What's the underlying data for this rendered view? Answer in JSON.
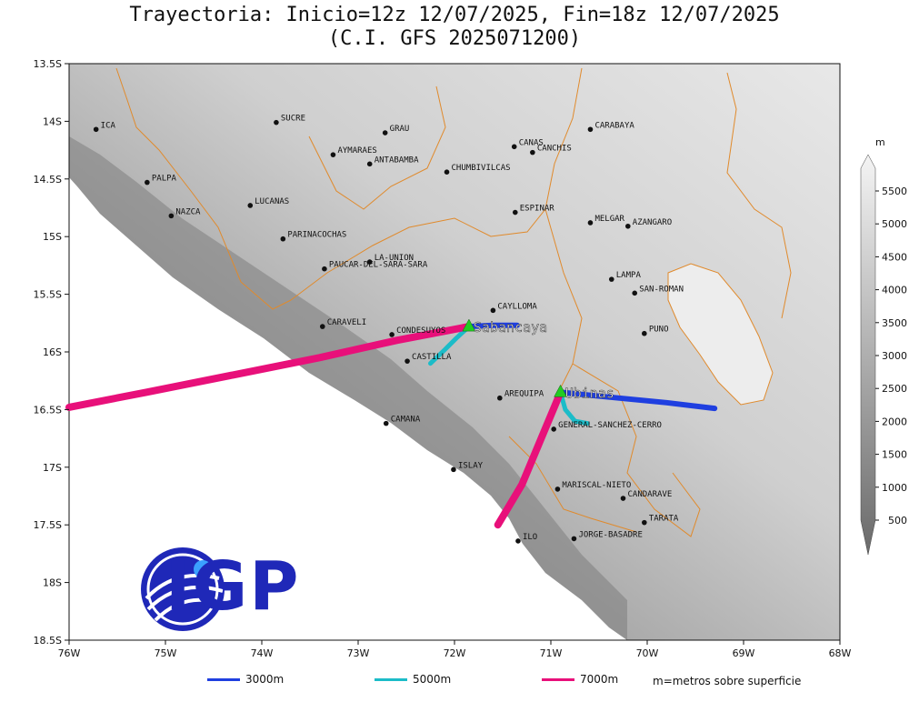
{
  "title": {
    "line1": "Trayectoria: Inicio=12z 12/07/2025, Fin=18z 12/07/2025",
    "line2": "(C.I. GFS 2025071200)"
  },
  "axes": {
    "lon_ticks": [
      "76W",
      "75W",
      "74W",
      "73W",
      "72W",
      "71W",
      "70W",
      "69W",
      "68W"
    ],
    "lat_ticks": [
      "13.5S",
      "14S",
      "14.5S",
      "15S",
      "15.5S",
      "16S",
      "16.5S",
      "17S",
      "17.5S",
      "18S",
      "18.5S"
    ]
  },
  "colorbar": {
    "unit": "m",
    "labels": [
      "500",
      "1000",
      "1500",
      "2000",
      "2500",
      "3000",
      "3500",
      "4000",
      "4500",
      "5000",
      "5500"
    ]
  },
  "places": [
    {
      "name": "ICA",
      "lon": -75.72,
      "lat": -14.07
    },
    {
      "name": "SUCRE",
      "lon": -73.85,
      "lat": -14.01
    },
    {
      "name": "GRAU",
      "lon": -72.72,
      "lat": -14.1
    },
    {
      "name": "CARABAYA",
      "lon": -70.59,
      "lat": -14.07
    },
    {
      "name": "CANAS",
      "lon": -71.38,
      "lat": -14.22
    },
    {
      "name": "CANCHIS",
      "lon": -71.19,
      "lat": -14.27
    },
    {
      "name": "AYMARAES",
      "lon": -73.26,
      "lat": -14.29
    },
    {
      "name": "ANTABAMBA",
      "lon": -72.88,
      "lat": -14.37
    },
    {
      "name": "CHUMBIVILCAS",
      "lon": -72.08,
      "lat": -14.44
    },
    {
      "name": "PALPA",
      "lon": -75.19,
      "lat": -14.53
    },
    {
      "name": "LUCANAS",
      "lon": -74.12,
      "lat": -14.73
    },
    {
      "name": "NAZCA",
      "lon": -74.94,
      "lat": -14.82
    },
    {
      "name": "ESPINAR",
      "lon": -71.37,
      "lat": -14.79
    },
    {
      "name": "MELGAR",
      "lon": -70.59,
      "lat": -14.88
    },
    {
      "name": "AZANGARO",
      "lon": -70.2,
      "lat": -14.91
    },
    {
      "name": "PARINACOCHAS",
      "lon": -73.78,
      "lat": -15.02
    },
    {
      "name": "LA-UNION",
      "lon": -72.88,
      "lat": -15.22
    },
    {
      "name": "PAUCAR-DEL-SARA-SARA",
      "lon": -73.35,
      "lat": -15.28
    },
    {
      "name": "LAMPA",
      "lon": -70.37,
      "lat": -15.37
    },
    {
      "name": "SAN-ROMAN",
      "lon": -70.13,
      "lat": -15.49
    },
    {
      "name": "CAYLLOMA",
      "lon": -71.6,
      "lat": -15.64
    },
    {
      "name": "CARAVELI",
      "lon": -73.37,
      "lat": -15.78
    },
    {
      "name": "CONDESUYOS",
      "lon": -72.65,
      "lat": -15.85
    },
    {
      "name": "PUNO",
      "lon": -70.03,
      "lat": -15.84
    },
    {
      "name": "CASTILLA",
      "lon": -72.49,
      "lat": -16.08
    },
    {
      "name": "AREQUIPA",
      "lon": -71.53,
      "lat": -16.4
    },
    {
      "name": "GENERAL-SANCHEZ-CERRO",
      "lon": -70.97,
      "lat": -16.67
    },
    {
      "name": "CAMANA",
      "lon": -72.71,
      "lat": -16.62
    },
    {
      "name": "ISLAY",
      "lon": -72.01,
      "lat": -17.02
    },
    {
      "name": "MARISCAL-NIETO",
      "lon": -70.93,
      "lat": -17.19
    },
    {
      "name": "CANDARAVE",
      "lon": -70.25,
      "lat": -17.27
    },
    {
      "name": "TARATA",
      "lon": -70.03,
      "lat": -17.48
    },
    {
      "name": "ILO",
      "lon": -71.34,
      "lat": -17.64
    },
    {
      "name": "JORGE-BASADRE",
      "lon": -70.76,
      "lat": -17.62
    }
  ],
  "volcanoes": [
    {
      "name": "Sabancaya",
      "lon": -71.85,
      "lat": -15.78,
      "color": "#22cc22"
    },
    {
      "name": "Ubinas",
      "lon": -70.9,
      "lat": -16.35,
      "color": "#22cc22"
    }
  ],
  "trajectories": [
    {
      "volcano": "Sabancaya",
      "level": "3000m",
      "color": "#1f3fe0",
      "points": [
        [
          -71.85,
          -15.78
        ],
        [
          -71.6,
          -15.77
        ],
        [
          -71.35,
          -15.77
        ]
      ]
    },
    {
      "volcano": "Sabancaya",
      "level": "5000m",
      "color": "#1cbcc8",
      "points": [
        [
          -71.85,
          -15.78
        ],
        [
          -71.98,
          -15.88
        ],
        [
          -72.1,
          -15.98
        ],
        [
          -72.25,
          -16.1
        ]
      ]
    },
    {
      "volcano": "Sabancaya",
      "level": "7000m",
      "color": "#e8107a",
      "points": [
        [
          -71.85,
          -15.78
        ],
        [
          -72.6,
          -15.9
        ],
        [
          -73.4,
          -16.05
        ],
        [
          -74.3,
          -16.2
        ],
        [
          -75.2,
          -16.35
        ],
        [
          -76.0,
          -16.48
        ]
      ]
    },
    {
      "volcano": "Ubinas",
      "level": "3000m",
      "color": "#1f3fe0",
      "points": [
        [
          -70.9,
          -16.35
        ],
        [
          -70.3,
          -16.4
        ],
        [
          -69.8,
          -16.44
        ],
        [
          -69.3,
          -16.49
        ]
      ]
    },
    {
      "volcano": "Ubinas",
      "level": "5000m",
      "color": "#1cbcc8",
      "points": [
        [
          -70.9,
          -16.35
        ],
        [
          -70.85,
          -16.5
        ],
        [
          -70.75,
          -16.6
        ],
        [
          -70.62,
          -16.62
        ]
      ]
    },
    {
      "volcano": "Ubinas",
      "level": "7000m",
      "color": "#e8107a",
      "points": [
        [
          -70.9,
          -16.35
        ],
        [
          -71.1,
          -16.75
        ],
        [
          -71.3,
          -17.15
        ],
        [
          -71.55,
          -17.5
        ]
      ]
    }
  ],
  "legend": [
    {
      "label": "3000m",
      "color": "#1f3fe0"
    },
    {
      "label": "5000m",
      "color": "#1cbcc8"
    },
    {
      "label": "7000m",
      "color": "#e8107a"
    }
  ],
  "legend_note": "m=metros sobre superficie",
  "logo": {
    "text": "IGP",
    "color": "#1f28b8"
  }
}
